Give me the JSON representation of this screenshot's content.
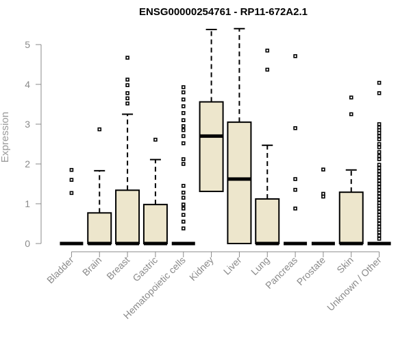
{
  "chart_data": {
    "type": "boxplot",
    "title": "ENSG00000254761 - RP11-672A2.1",
    "ylabel": "Expression",
    "xlabel": "",
    "ylim": [
      0,
      5.4
    ],
    "yticks": [
      0,
      1,
      2,
      3,
      4,
      5
    ],
    "box_fill": "#ede6cc",
    "categories": [
      "Bladder",
      "Brain",
      "Breast",
      "Gastric",
      "Hematopoietic cells",
      "Kidney",
      "Liver",
      "Lung",
      "Pancreas",
      "Prostate",
      "Skin",
      "Unknown / Other"
    ],
    "boxes": [
      {
        "min": 0,
        "q1": 0,
        "median": 0,
        "q3": 0,
        "max": 0,
        "outliers": [
          1.85,
          1.6,
          1.27
        ]
      },
      {
        "min": 0,
        "q1": 0,
        "median": 0,
        "q3": 0.77,
        "max": 1.83,
        "outliers": [
          2.87
        ]
      },
      {
        "min": 0,
        "q1": 0,
        "median": 0,
        "q3": 1.34,
        "max": 3.25,
        "outliers": [
          4.67,
          4.12,
          3.98,
          3.78,
          3.65,
          3.52
        ]
      },
      {
        "min": 0,
        "q1": 0,
        "median": 0,
        "q3": 0.98,
        "max": 2.11,
        "outliers": [
          2.61
        ]
      },
      {
        "min": 0,
        "q1": 0,
        "median": 0,
        "q3": 0,
        "max": 0,
        "outliers": [
          3.93,
          3.8,
          3.62,
          3.45,
          3.28,
          3.1,
          2.95,
          2.85,
          2.7,
          2.52,
          2.12,
          2.0,
          1.45,
          1.28,
          1.15,
          0.98,
          0.88,
          0.72,
          0.55,
          0.38
        ]
      },
      {
        "min": 0,
        "q1": 1.31,
        "median": 2.7,
        "q3": 3.56,
        "max": 5.38,
        "outliers": []
      },
      {
        "min": 0,
        "q1": 0,
        "median": 1.62,
        "q3": 3.05,
        "max": 5.4,
        "outliers": []
      },
      {
        "min": 0,
        "q1": 0,
        "median": 0,
        "q3": 1.12,
        "max": 2.47,
        "outliers": [
          4.85,
          4.37
        ]
      },
      {
        "min": 0,
        "q1": 0,
        "median": 0,
        "q3": 0,
        "max": 0,
        "outliers": [
          4.71,
          2.9,
          1.62,
          1.35,
          0.88
        ]
      },
      {
        "min": 0,
        "q1": 0,
        "median": 0,
        "q3": 0,
        "max": 0,
        "outliers": [
          1.86,
          1.25,
          1.18
        ]
      },
      {
        "min": 0,
        "q1": 0,
        "median": 0,
        "q3": 1.29,
        "max": 1.85,
        "outliers": [
          3.67,
          3.25
        ]
      },
      {
        "min": 0,
        "q1": 0,
        "median": 0,
        "q3": 0,
        "max": 0,
        "outliers": [
          4.04,
          3.78,
          3.0,
          2.92,
          2.85,
          2.78,
          2.7,
          2.62,
          2.5,
          2.42,
          2.3,
          2.2,
          2.12,
          1.98,
          1.9,
          1.82,
          1.74,
          1.66,
          1.58,
          1.5,
          1.42,
          1.34,
          1.26,
          1.18,
          1.1,
          1.02,
          0.95,
          0.88,
          0.8,
          0.72,
          0.65,
          0.58,
          0.5,
          0.42,
          0.35,
          0.28,
          0.2,
          0.12
        ]
      }
    ]
  }
}
